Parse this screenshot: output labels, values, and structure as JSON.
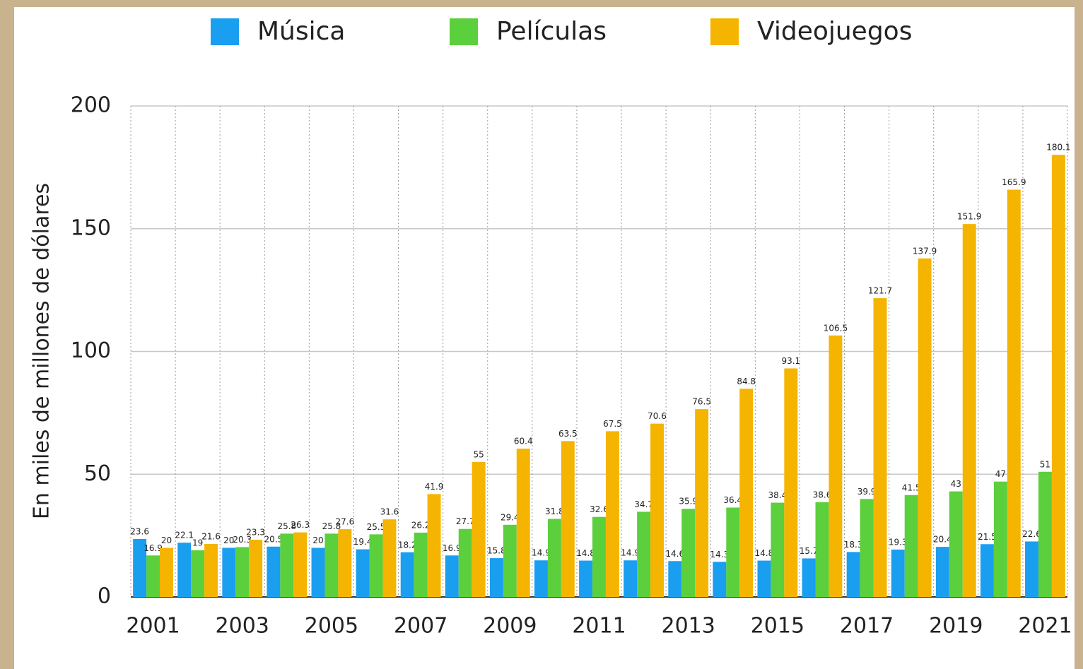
{
  "chart_data": {
    "type": "bar",
    "y_label": "En miles de millones de dólares",
    "categories": [
      "2001",
      null,
      "2003",
      null,
      "2005",
      null,
      "2007",
      null,
      "2009",
      null,
      "2011",
      null,
      "2013",
      null,
      "2015",
      null,
      "2017",
      null,
      "2019",
      null,
      "2021"
    ],
    "series": [
      {
        "name": "Música",
        "color": "#1a9ef0",
        "values": [
          23.6,
          22.1,
          20,
          20.5,
          20,
          19.4,
          18.2,
          16.9,
          15.8,
          14.9,
          14.8,
          14.9,
          14.6,
          14.3,
          14.8,
          15.7,
          18.3,
          19.3,
          20.4,
          21.5,
          22.6
        ]
      },
      {
        "name": "Películas",
        "color": "#5ccf3c",
        "values": [
          16.9,
          19,
          20.3,
          25.8,
          25.8,
          25.5,
          26.2,
          27.7,
          29.4,
          31.8,
          32.6,
          34.7,
          35.9,
          36.4,
          38.4,
          38.6,
          39.9,
          41.5,
          43,
          47,
          51
        ]
      },
      {
        "name": "Videojuegos",
        "color": "#f5b400",
        "values": [
          20,
          21.6,
          23.3,
          26.3,
          27.6,
          31.6,
          41.9,
          55,
          60.4,
          63.5,
          67.5,
          70.6,
          76.5,
          84.8,
          93.1,
          106.5,
          121.7,
          137.9,
          151.9,
          165.9,
          180.1
        ]
      }
    ],
    "ylim": [
      0,
      200
    ],
    "yticks": [
      0,
      50,
      100,
      150,
      200
    ],
    "grid": true,
    "legend": "top"
  }
}
